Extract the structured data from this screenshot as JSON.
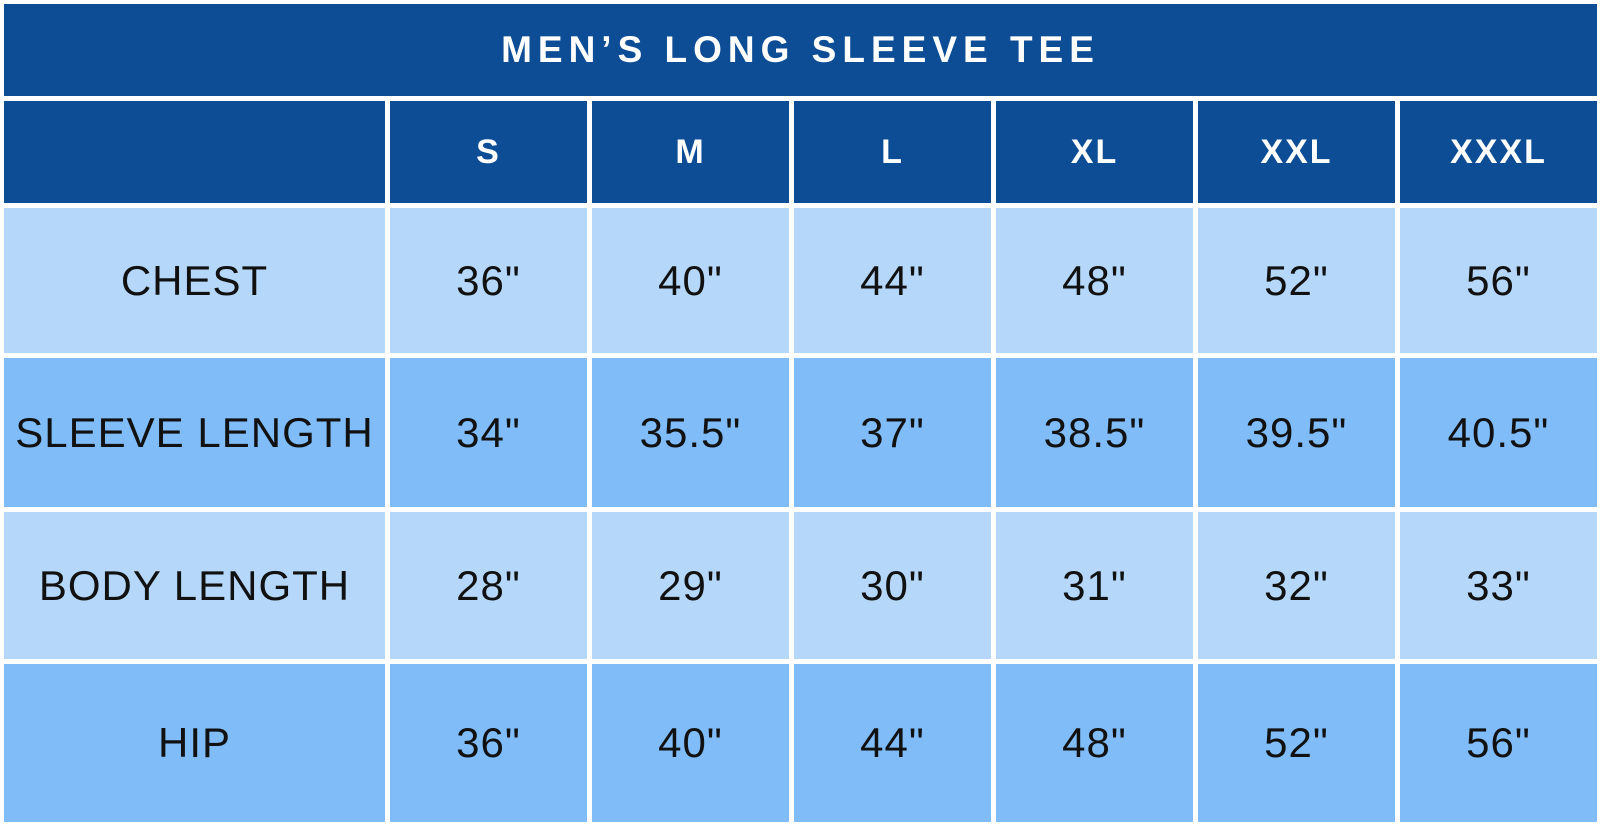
{
  "title": "MEN’S LONG SLEEVE TEE",
  "colors": {
    "header_blue": "#0D4D96",
    "row_light_blue": "#B5D8FA",
    "row_medium_blue": "#7FBCF8",
    "grid_line": "#FFFFFF",
    "header_text": "#FFFFFF",
    "cell_text": "#111111"
  },
  "table": {
    "corner_label": "",
    "size_headers": [
      "S",
      "M",
      "L",
      "XL",
      "XXL",
      "XXXL"
    ],
    "rows": [
      {
        "label": "CHEST",
        "shade": "light",
        "values": [
          "36\"",
          "40\"",
          "44\"",
          "48\"",
          "52\"",
          "56\""
        ]
      },
      {
        "label": "SLEEVE LENGTH",
        "shade": "medium",
        "values": [
          "34\"",
          "35.5\"",
          "37\"",
          "38.5\"",
          "39.5\"",
          "40.5\""
        ]
      },
      {
        "label": "BODY LENGTH",
        "shade": "light",
        "values": [
          "28\"",
          "29\"",
          "30\"",
          "31\"",
          "32\"",
          "33\""
        ]
      },
      {
        "label": "HIP",
        "shade": "medium",
        "values": [
          "36\"",
          "40\"",
          "44\"",
          "48\"",
          "52\"",
          "56\""
        ]
      }
    ]
  },
  "chart_data": {
    "type": "table",
    "title": "MEN’S LONG SLEEVE TEE",
    "columns": [
      "",
      "S",
      "M",
      "L",
      "XL",
      "XXL",
      "XXXL"
    ],
    "rows": [
      [
        "CHEST",
        "36\"",
        "40\"",
        "44\"",
        "48\"",
        "52\"",
        "56\""
      ],
      [
        "SLEEVE LENGTH",
        "34\"",
        "35.5\"",
        "37\"",
        "38.5\"",
        "39.5\"",
        "40.5\""
      ],
      [
        "BODY LENGTH",
        "28\"",
        "29\"",
        "30\"",
        "31\"",
        "32\"",
        "33\""
      ],
      [
        "HIP",
        "36\"",
        "40\"",
        "44\"",
        "48\"",
        "52\"",
        "56\""
      ]
    ],
    "layout": {
      "title_position": "top-banner",
      "row_shading_alternates": true,
      "grid": "white gaps between cells"
    }
  }
}
